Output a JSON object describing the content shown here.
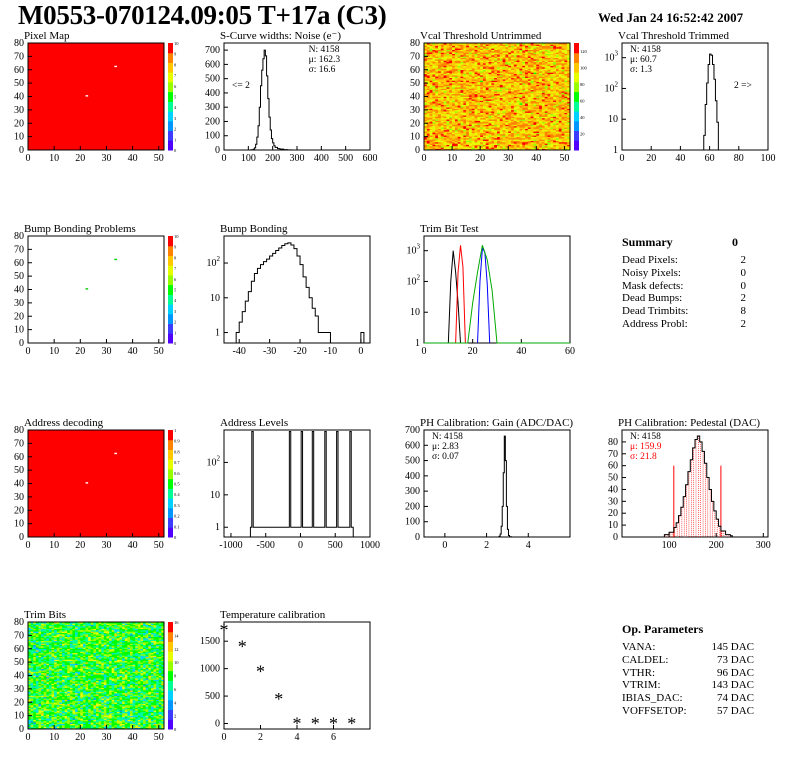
{
  "header": {
    "title": "M0553-070124.09:05 T+17a (C3)",
    "date": "Wed Jan 24 16:52:42 2007"
  },
  "colors": {
    "palette": [
      "#5000ff",
      "#3c3cff",
      "#0096ff",
      "#00d2ff",
      "#00ff96",
      "#00ff00",
      "#96ff00",
      "#e6ff00",
      "#ffc800",
      "#ff8200",
      "#ff0000"
    ]
  },
  "summary": {
    "title": "Summary",
    "total": "0",
    "items": [
      {
        "label": "Dead Pixels:",
        "value": "2"
      },
      {
        "label": "Noisy Pixels:",
        "value": "0"
      },
      {
        "label": "Mask defects:",
        "value": "0"
      },
      {
        "label": "Dead Bumps:",
        "value": "2"
      },
      {
        "label": "Dead Trimbits:",
        "value": "8"
      },
      {
        "label": "Address Probl:",
        "value": "2"
      }
    ]
  },
  "op_params": {
    "title": "Op. Parameters",
    "items": [
      {
        "label": "VANA:",
        "value": "145 DAC"
      },
      {
        "label": "CALDEL:",
        "value": "73 DAC"
      },
      {
        "label": "VTHR:",
        "value": "96 DAC"
      },
      {
        "label": "VTRIM:",
        "value": "143 DAC"
      },
      {
        "label": "IBIAS_DAC:",
        "value": "74 DAC"
      },
      {
        "label": "VOFFSETOP:",
        "value": "57 DAC"
      }
    ]
  },
  "chart_data": [
    {
      "id": "pixel-map",
      "type": "heatmap",
      "title": "Pixel Map",
      "xlim": [
        0,
        52
      ],
      "ylim": [
        0,
        80
      ],
      "xticks": [
        0,
        10,
        20,
        30,
        40,
        50
      ],
      "yticks": [
        0,
        10,
        20,
        30,
        40,
        50,
        60,
        70,
        80
      ],
      "zticks": [
        0,
        1,
        2,
        3,
        4,
        5,
        6,
        7,
        8,
        9,
        10
      ],
      "zmax": 10,
      "fill": "uniform",
      "base_value": 10,
      "cells": [
        {
          "x": 33,
          "y": 62,
          "value": 0
        },
        {
          "x": 22,
          "y": 40,
          "value": 0
        }
      ]
    },
    {
      "id": "scurve-noise",
      "type": "bar",
      "title": "S-Curve widths: Noise (e⁻)",
      "xlim": [
        0,
        600
      ],
      "ylim": [
        0,
        750
      ],
      "log": false,
      "xticks": [
        0,
        100,
        200,
        300,
        400,
        500,
        600
      ],
      "yticks": [
        0,
        100,
        200,
        300,
        400,
        500,
        600,
        700
      ],
      "stats": [
        {
          "label": "N:",
          "value": "4158"
        },
        {
          "label": "μ:",
          "value": "162.3"
        },
        {
          "label": "σ:",
          "value": "16.6"
        }
      ],
      "note": "<= 2",
      "note_pos": "left",
      "bins": [
        [
          110,
          2
        ],
        [
          120,
          5
        ],
        [
          125,
          15
        ],
        [
          130,
          40
        ],
        [
          135,
          90
        ],
        [
          140,
          170
        ],
        [
          145,
          300
        ],
        [
          150,
          450
        ],
        [
          155,
          560
        ],
        [
          160,
          640
        ],
        [
          165,
          700
        ],
        [
          170,
          660
        ],
        [
          175,
          520
        ],
        [
          180,
          360
        ],
        [
          185,
          230
        ],
        [
          190,
          140
        ],
        [
          195,
          80
        ],
        [
          200,
          50
        ],
        [
          205,
          30
        ],
        [
          210,
          18
        ],
        [
          220,
          10
        ],
        [
          230,
          6
        ],
        [
          245,
          3
        ],
        [
          260,
          1
        ],
        [
          280,
          0
        ]
      ]
    },
    {
      "id": "vcal-untrimmed",
      "type": "heatmap",
      "title": "Vcal Threshold Untrimmed",
      "xlim": [
        0,
        52
      ],
      "ylim": [
        0,
        80
      ],
      "xticks": [
        0,
        10,
        20,
        30,
        40,
        50
      ],
      "yticks": [
        0,
        10,
        20,
        30,
        40,
        50,
        60,
        70,
        80
      ],
      "zticks": [
        20,
        40,
        60,
        80,
        100,
        120
      ],
      "zmax": 130,
      "fill": "random",
      "base_value": 105,
      "spread": 25,
      "seed": 7
    },
    {
      "id": "vcal-trimmed",
      "type": "bar",
      "title": "Vcal Threshold Trimmed",
      "xlim": [
        0,
        100
      ],
      "ylim": [
        1,
        3000
      ],
      "log": true,
      "xticks": [
        0,
        20,
        40,
        60,
        80,
        100
      ],
      "yticks": [
        1,
        10,
        100,
        1000
      ],
      "stats": [
        {
          "label": "N:",
          "value": "4158"
        },
        {
          "label": "μ:",
          "value": "60.7"
        },
        {
          "label": "σ:",
          "value": "1.3"
        }
      ],
      "note": "2 =>",
      "note_pos": "right",
      "bins": [
        [
          55,
          1
        ],
        [
          56,
          3
        ],
        [
          57,
          30
        ],
        [
          58,
          150
        ],
        [
          59,
          600
        ],
        [
          60,
          1300
        ],
        [
          61,
          1200
        ],
        [
          62,
          600
        ],
        [
          63,
          200
        ],
        [
          64,
          40
        ],
        [
          65,
          8
        ],
        [
          66,
          1
        ]
      ]
    },
    {
      "id": "bump-map",
      "type": "heatmap",
      "title": "Bump Bonding Problems",
      "xlim": [
        0,
        52
      ],
      "ylim": [
        0,
        80
      ],
      "xticks": [
        0,
        10,
        20,
        30,
        40,
        50
      ],
      "yticks": [
        0,
        10,
        20,
        30,
        40,
        50,
        60,
        70,
        80
      ],
      "zticks": [
        0,
        1,
        2,
        3,
        4,
        5,
        6,
        7,
        8,
        9,
        10
      ],
      "zmax": 10,
      "fill": "empty",
      "cells": [
        {
          "x": 33,
          "y": 62,
          "value": 5
        },
        {
          "x": 22,
          "y": 40,
          "value": 5
        }
      ]
    },
    {
      "id": "bump-bonding",
      "type": "bar",
      "title": "Bump Bonding",
      "xlim": [
        -45,
        3
      ],
      "ylim": [
        0.5,
        600
      ],
      "log": true,
      "xticks": [
        -40,
        -30,
        -20,
        -10,
        0
      ],
      "yticks": [
        1,
        10,
        100
      ],
      "bins": [
        [
          -41,
          1
        ],
        [
          -40,
          2
        ],
        [
          -39,
          4
        ],
        [
          -38,
          8
        ],
        [
          -37,
          15
        ],
        [
          -36,
          30
        ],
        [
          -35,
          50
        ],
        [
          -34,
          70
        ],
        [
          -33,
          90
        ],
        [
          -32,
          110
        ],
        [
          -31,
          130
        ],
        [
          -30,
          160
        ],
        [
          -29,
          190
        ],
        [
          -28,
          230
        ],
        [
          -27,
          270
        ],
        [
          -26,
          320
        ],
        [
          -25,
          360
        ],
        [
          -24,
          380
        ],
        [
          -23,
          330
        ],
        [
          -22,
          260
        ],
        [
          -21,
          160
        ],
        [
          -20,
          90
        ],
        [
          -19,
          40
        ],
        [
          -18,
          20
        ],
        [
          -17,
          10
        ],
        [
          -16,
          5
        ],
        [
          -15,
          3
        ],
        [
          -14,
          1
        ],
        [
          -12,
          1
        ],
        [
          -11,
          1
        ],
        [
          -10,
          0
        ],
        [
          0,
          1
        ],
        [
          1,
          0
        ]
      ]
    },
    {
      "id": "trim-bit-test",
      "type": "line",
      "title": "Trim Bit Test",
      "xlim": [
        0,
        60
      ],
      "ylim": [
        1,
        3000
      ],
      "log": true,
      "xticks": [
        0,
        20,
        40,
        60
      ],
      "yticks": [
        1,
        10,
        100,
        1000
      ],
      "series": [
        {
          "color": "#000000",
          "points": [
            [
              10,
              0
            ],
            [
              11,
              100
            ],
            [
              12,
              1000
            ],
            [
              13,
              200
            ],
            [
              14,
              20
            ],
            [
              15,
              0
            ]
          ]
        },
        {
          "color": "#ff0000",
          "points": [
            [
              13,
              0
            ],
            [
              14,
              200
            ],
            [
              15,
              1500
            ],
            [
              16,
              300
            ],
            [
              17,
              0
            ]
          ]
        },
        {
          "color": "#0000ff",
          "points": [
            [
              22,
              0
            ],
            [
              23,
              100
            ],
            [
              24,
              1200
            ],
            [
              25,
              900
            ],
            [
              26,
              80
            ],
            [
              27,
              0
            ]
          ]
        },
        {
          "color": "#00aa00",
          "points": [
            [
              0,
              1
            ],
            [
              18,
              1
            ],
            [
              20,
              20
            ],
            [
              22,
              200
            ],
            [
              24,
              1500
            ],
            [
              26,
              500
            ],
            [
              28,
              50
            ],
            [
              30,
              1
            ],
            [
              60,
              1
            ]
          ]
        }
      ]
    },
    {
      "id": "address-decoding",
      "type": "heatmap",
      "title": "Address decoding",
      "xlim": [
        0,
        52
      ],
      "ylim": [
        0,
        80
      ],
      "xticks": [
        0,
        10,
        20,
        30,
        40,
        50
      ],
      "yticks": [
        0,
        10,
        20,
        30,
        40,
        50,
        60,
        70,
        80
      ],
      "zticks": [
        0,
        0.1,
        0.2,
        0.3,
        0.4,
        0.5,
        0.6,
        0.7,
        0.8,
        0.9,
        1
      ],
      "zmax": 1,
      "fill": "uniform",
      "base_value": 1,
      "cells": [
        {
          "x": 33,
          "y": 62,
          "value": 0
        },
        {
          "x": 22,
          "y": 40,
          "value": 0
        }
      ]
    },
    {
      "id": "address-levels",
      "type": "bar",
      "title": "Address Levels",
      "xlim": [
        -1100,
        1000
      ],
      "ylim": [
        0.5,
        1000
      ],
      "log": true,
      "xticks": [
        -1000,
        -500,
        0,
        500,
        1000
      ],
      "yticks": [
        1,
        10,
        100
      ],
      "bins": [
        [
          -720,
          1
        ],
        [
          -700,
          900
        ],
        [
          -680,
          1
        ],
        [
          -180,
          1
        ],
        [
          -160,
          900
        ],
        [
          -140,
          1
        ],
        [
          -10,
          1
        ],
        [
          10,
          900
        ],
        [
          30,
          1
        ],
        [
          150,
          1
        ],
        [
          170,
          900
        ],
        [
          190,
          1
        ],
        [
          330,
          1
        ],
        [
          350,
          900
        ],
        [
          370,
          1
        ],
        [
          500,
          1
        ],
        [
          520,
          900
        ],
        [
          540,
          1
        ],
        [
          690,
          1
        ],
        [
          710,
          900
        ],
        [
          730,
          1
        ]
      ]
    },
    {
      "id": "ph-gain",
      "type": "bar",
      "title": "PH Calibration: Gain (ADC/DAC)",
      "xlim": [
        -1,
        6
      ],
      "ylim": [
        0,
        700
      ],
      "log": false,
      "xticks": [
        0,
        2,
        4
      ],
      "yticks": [
        0,
        100,
        200,
        300,
        400,
        500,
        600,
        700
      ],
      "stats": [
        {
          "label": "N:",
          "value": "4158"
        },
        {
          "label": "μ:",
          "value": "2.83"
        },
        {
          "label": "σ:",
          "value": "0.07"
        }
      ],
      "bins": [
        [
          2.6,
          5
        ],
        [
          2.65,
          20
        ],
        [
          2.7,
          70
        ],
        [
          2.75,
          200
        ],
        [
          2.8,
          420
        ],
        [
          2.85,
          660
        ],
        [
          2.9,
          500
        ],
        [
          2.95,
          200
        ],
        [
          3.0,
          50
        ],
        [
          3.05,
          10
        ],
        [
          3.1,
          2
        ]
      ]
    },
    {
      "id": "ph-pedestal",
      "type": "bar",
      "title": "PH Calibration: Pedestal (DAC)",
      "xlim": [
        0,
        310
      ],
      "ylim": [
        0,
        90
      ],
      "log": false,
      "xticks": [
        100,
        200,
        300
      ],
      "yticks": [
        0,
        10,
        20,
        30,
        40,
        50,
        60,
        70,
        80
      ],
      "stats": [
        {
          "label": "N:",
          "value": "4158",
          "color": "#000000"
        },
        {
          "label": "μ:",
          "value": "159.9",
          "color": "#ff0000"
        },
        {
          "label": "σ:",
          "value": "21.8",
          "color": "#ff0000"
        }
      ],
      "markers": [
        110,
        210
      ],
      "bins": [
        [
          90,
          2
        ],
        [
          100,
          4
        ],
        [
          110,
          8
        ],
        [
          115,
          12
        ],
        [
          120,
          18
        ],
        [
          125,
          25
        ],
        [
          130,
          34
        ],
        [
          135,
          44
        ],
        [
          140,
          55
        ],
        [
          145,
          65
        ],
        [
          150,
          75
        ],
        [
          155,
          82
        ],
        [
          160,
          85
        ],
        [
          165,
          80
        ],
        [
          170,
          72
        ],
        [
          175,
          62
        ],
        [
          180,
          50
        ],
        [
          185,
          40
        ],
        [
          190,
          30
        ],
        [
          195,
          22
        ],
        [
          200,
          15
        ],
        [
          205,
          9
        ],
        [
          210,
          5
        ],
        [
          220,
          2
        ],
        [
          230,
          1
        ]
      ]
    },
    {
      "id": "trim-bits",
      "type": "heatmap",
      "title": "Trim Bits",
      "xlim": [
        0,
        52
      ],
      "ylim": [
        0,
        80
      ],
      "xticks": [
        0,
        10,
        20,
        30,
        40,
        50
      ],
      "yticks": [
        0,
        10,
        20,
        30,
        40,
        50,
        60,
        70,
        80
      ],
      "zticks": [
        0,
        2,
        4,
        6,
        8,
        10,
        12,
        14,
        16
      ],
      "zmax": 16,
      "fill": "random",
      "base_value": 8,
      "spread": 3.5,
      "seed": 3
    },
    {
      "id": "temperature-calibration",
      "type": "scatter",
      "title": "Temperature calibration",
      "xlim": [
        0,
        8
      ],
      "ylim": [
        -100,
        1850
      ],
      "log": false,
      "xticks": [
        0,
        2,
        4,
        6
      ],
      "yticks": [
        0,
        500,
        1000,
        1500
      ],
      "points": [
        [
          0,
          1700
        ],
        [
          1,
          1400
        ],
        [
          2,
          950
        ],
        [
          3,
          450
        ],
        [
          4,
          0
        ],
        [
          5,
          0
        ],
        [
          6,
          0
        ],
        [
          7,
          0
        ]
      ]
    }
  ]
}
